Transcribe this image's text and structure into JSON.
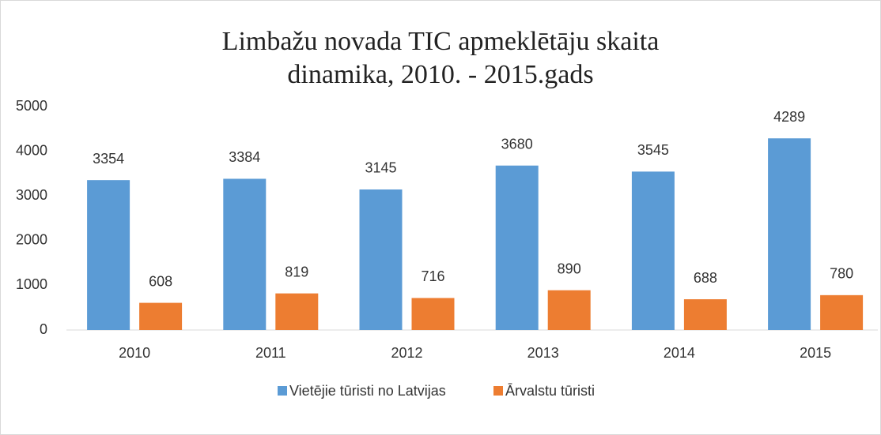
{
  "chart_data": {
    "type": "bar",
    "title": "Limbažu novada TIC apmeklētāju skaita dinamika, 2010. - 2015.gads",
    "categories": [
      "2010",
      "2011",
      "2012",
      "2013",
      "2014",
      "2015"
    ],
    "series": [
      {
        "name": "Vietējie tūristi no Latvijas",
        "color": "#5b9bd5",
        "values": [
          3354,
          3384,
          3145,
          3680,
          3545,
          4289
        ]
      },
      {
        "name": "Ārvalstu tūristi",
        "color": "#ed7d31",
        "values": [
          608,
          819,
          716,
          890,
          688,
          780
        ]
      }
    ],
    "ylim": [
      0,
      5000
    ],
    "yticks": [
      0,
      1000,
      2000,
      3000,
      4000,
      5000
    ],
    "grid": false,
    "legend": "bottom"
  }
}
